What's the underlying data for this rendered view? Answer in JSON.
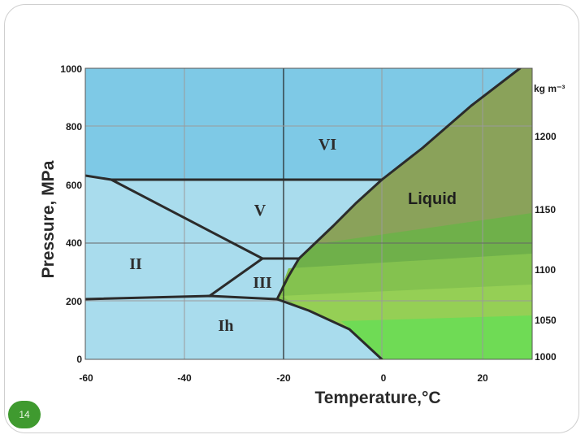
{
  "slide": {
    "page_number": "14"
  },
  "axes": {
    "x_title": "Temperature,°C",
    "y_title": "Pressure, MPa",
    "x_ticks": [
      "-60",
      "-40",
      "-20",
      "0",
      "20"
    ],
    "y_ticks": [
      "0",
      "200",
      "400",
      "600",
      "800",
      "1000"
    ],
    "density_unit": "kg m⁻³",
    "density_ticks": [
      "1200",
      "1150",
      "1100",
      "1050",
      "1000"
    ]
  },
  "phases": {
    "vi": "VI",
    "v": "V",
    "ii": "II",
    "iii": "III",
    "ih": "Ih",
    "liquid": "Liquid"
  },
  "colors": {
    "ice_dark": "#7ec9e6",
    "ice_light": "#a9dced",
    "liquid_dark": "#8aa25a",
    "liquid_mid": "#6fb04a",
    "liquid_light": "#8fd05a",
    "liquid_bright": "#6fdb55",
    "boundary": "#2b2b2b",
    "page_badge": "#3f9a2f"
  },
  "chart_data": {
    "type": "phase_diagram",
    "xlabel": "Temperature,°C",
    "ylabel": "Pressure, MPa",
    "xlim": [
      -60,
      30
    ],
    "ylim": [
      0,
      1000
    ],
    "secondary_axis": {
      "label": "kg m⁻³",
      "ticks": [
        1200,
        1150,
        1100,
        1050,
        1000
      ]
    },
    "regions": [
      "VI",
      "V",
      "II",
      "III",
      "Ih",
      "Liquid"
    ],
    "boundaries": [
      {
        "name": "Ih-liquid",
        "points": [
          [
            0,
            0
          ],
          [
            -10,
            80
          ],
          [
            -22,
            209
          ]
        ]
      },
      {
        "name": "Ih-II/III",
        "points": [
          [
            -60,
            205
          ],
          [
            -35,
            213
          ],
          [
            -22,
            209
          ]
        ]
      },
      {
        "name": "III-liquid",
        "points": [
          [
            -22,
            209
          ],
          [
            -19.5,
            250
          ],
          [
            -17,
            344
          ]
        ]
      },
      {
        "name": "II-III",
        "points": [
          [
            -35,
            213
          ],
          [
            -24,
            344
          ]
        ]
      },
      {
        "name": "III-V",
        "points": [
          [
            -24,
            344
          ],
          [
            -17,
            344
          ]
        ]
      },
      {
        "name": "II-V",
        "points": [
          [
            -24,
            344
          ],
          [
            -55,
            620
          ]
        ]
      },
      {
        "name": "V-liquid",
        "points": [
          [
            -17,
            344
          ],
          [
            0,
            620
          ]
        ]
      },
      {
        "name": "V-VI",
        "points": [
          [
            -60,
            632
          ],
          [
            -55,
            620
          ],
          [
            0,
            620
          ]
        ]
      },
      {
        "name": "VI-liquid",
        "points": [
          [
            0,
            620
          ],
          [
            14,
            800
          ],
          [
            28,
            1000
          ]
        ]
      }
    ],
    "grid": true
  }
}
